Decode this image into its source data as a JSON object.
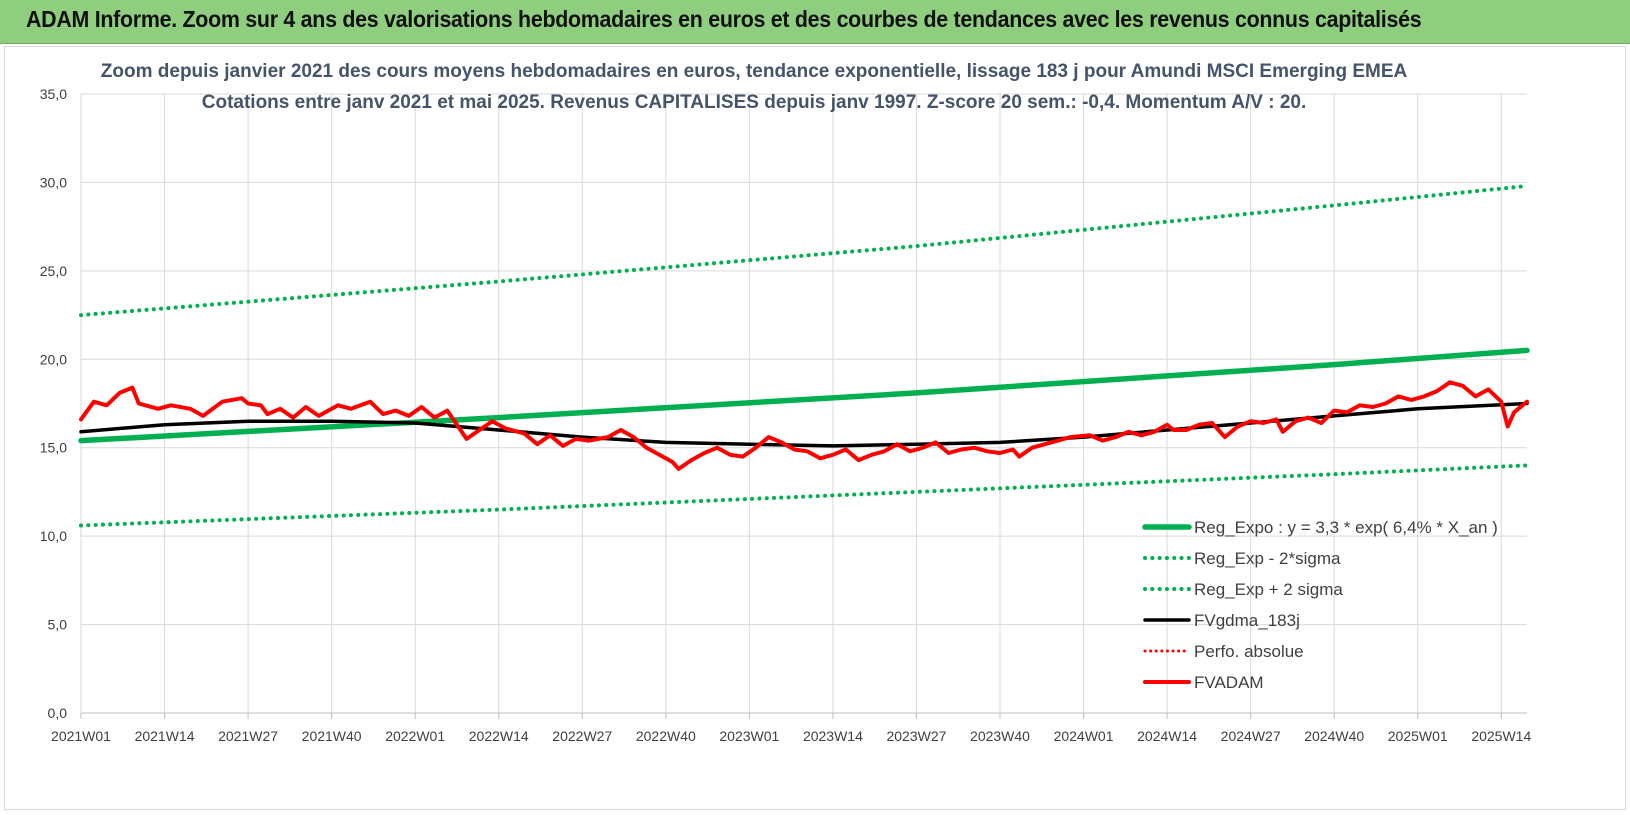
{
  "banner": {
    "title": "ADAM Informe. Zoom sur 4 ans des valorisations hebdomadaires en euros et des courbes de tendances avec les revenus connus capitalisés"
  },
  "colors": {
    "banner_bg": "#8fce7e",
    "trend_green": "#00b050",
    "dotted_green": "#00b050",
    "smooth_black": "#000000",
    "price_red": "#ff0000",
    "grid": "#d9d9d9",
    "title_text": "#44546a"
  },
  "chart_data": {
    "type": "line",
    "title_lines": [
      "Zoom depuis janvier 2021 des cours moyens hebdomadaires en euros, tendance exponentielle, lissage 183 j pour Amundi MSCI Emerging EMEA",
      "Cotations entre janv 2021 et mai 2025. Revenus CAPITALISES depuis janv 1997. Z-score 20 sem.: -0,4. Momentum A/V : 20."
    ],
    "xlabel": "",
    "ylabel": "",
    "ylim": [
      0,
      35
    ],
    "ytick_values": [
      0,
      5,
      10,
      15,
      20,
      25,
      30,
      35
    ],
    "ytick_labels": [
      "0,0",
      "5,0",
      "10,0",
      "15,0",
      "20,0",
      "25,0",
      "30,0",
      "35,0"
    ],
    "x_first_week": "2021W01",
    "x_last_week": "2025W18",
    "xtick_labels": [
      "2021W01",
      "2021W14",
      "2021W27",
      "2021W40",
      "2022W01",
      "2022W14",
      "2022W27",
      "2022W40",
      "2023W01",
      "2023W14",
      "2023W27",
      "2023W40",
      "2024W01",
      "2024W14",
      "2024W27",
      "2024W40",
      "2025W01",
      "2025W14"
    ],
    "grid": true,
    "legend_position": "bottom-right",
    "series": [
      {
        "name": "Reg_Expo : y = 3,3 * exp( 6,4% *  X_an )",
        "style": "solid-thick",
        "color": "#00b050",
        "points": [
          [
            "2021W01",
            15.4
          ],
          [
            "2022W14",
            16.7
          ],
          [
            "2023W27",
            18.1
          ],
          [
            "2024W40",
            19.7
          ],
          [
            "2025W18",
            20.5
          ]
        ]
      },
      {
        "name": "Reg_Exp - 2*sigma",
        "style": "dotted",
        "color": "#00b050",
        "points": [
          [
            "2021W01",
            10.6
          ],
          [
            "2022W14",
            11.5
          ],
          [
            "2023W27",
            12.5
          ],
          [
            "2024W40",
            13.5
          ],
          [
            "2025W18",
            14.0
          ]
        ]
      },
      {
        "name": "Reg_Exp + 2 sigma",
        "style": "dotted",
        "color": "#00b050",
        "points": [
          [
            "2021W01",
            22.5
          ],
          [
            "2022W14",
            24.4
          ],
          [
            "2023W27",
            26.4
          ],
          [
            "2024W40",
            28.7
          ],
          [
            "2025W18",
            29.8
          ]
        ]
      },
      {
        "name": "FVgdma_183j",
        "style": "solid",
        "color": "#000000",
        "points": [
          [
            "2021W01",
            15.9
          ],
          [
            "2021W14",
            16.3
          ],
          [
            "2021W27",
            16.5
          ],
          [
            "2021W40",
            16.5
          ],
          [
            "2022W01",
            16.4
          ],
          [
            "2022W14",
            16.0
          ],
          [
            "2022W27",
            15.6
          ],
          [
            "2022W40",
            15.3
          ],
          [
            "2023W01",
            15.2
          ],
          [
            "2023W14",
            15.1
          ],
          [
            "2023W27",
            15.2
          ],
          [
            "2023W40",
            15.3
          ],
          [
            "2024W01",
            15.6
          ],
          [
            "2024W14",
            16.0
          ],
          [
            "2024W27",
            16.4
          ],
          [
            "2024W40",
            16.8
          ],
          [
            "2025W01",
            17.2
          ],
          [
            "2025W18",
            17.5
          ]
        ]
      },
      {
        "name": "Perfo. absolue",
        "style": "dotted",
        "color": "#ff0000",
        "points": []
      },
      {
        "name": "FVADAM",
        "style": "solid-thick",
        "color": "#ff0000",
        "points": [
          [
            "2021W01",
            16.6
          ],
          [
            "2021W03",
            17.6
          ],
          [
            "2021W05",
            17.4
          ],
          [
            "2021W07",
            18.1
          ],
          [
            "2021W09",
            18.4
          ],
          [
            "2021W10",
            17.5
          ],
          [
            "2021W13",
            17.2
          ],
          [
            "2021W15",
            17.4
          ],
          [
            "2021W18",
            17.2
          ],
          [
            "2021W20",
            16.8
          ],
          [
            "2021W23",
            17.6
          ],
          [
            "2021W26",
            17.8
          ],
          [
            "2021W27",
            17.5
          ],
          [
            "2021W29",
            17.4
          ],
          [
            "2021W30",
            16.9
          ],
          [
            "2021W32",
            17.2
          ],
          [
            "2021W34",
            16.7
          ],
          [
            "2021W36",
            17.3
          ],
          [
            "2021W38",
            16.8
          ],
          [
            "2021W41",
            17.4
          ],
          [
            "2021W43",
            17.2
          ],
          [
            "2021W46",
            17.6
          ],
          [
            "2021W48",
            16.9
          ],
          [
            "2021W50",
            17.1
          ],
          [
            "2021W52",
            16.8
          ],
          [
            "2022W02",
            17.3
          ],
          [
            "2022W04",
            16.7
          ],
          [
            "2022W06",
            17.1
          ],
          [
            "2022W09",
            15.5
          ],
          [
            "2022W11",
            16.0
          ],
          [
            "2022W13",
            16.5
          ],
          [
            "2022W15",
            16.1
          ],
          [
            "2022W18",
            15.8
          ],
          [
            "2022W20",
            15.2
          ],
          [
            "2022W22",
            15.7
          ],
          [
            "2022W24",
            15.1
          ],
          [
            "2022W26",
            15.5
          ],
          [
            "2022W28",
            15.4
          ],
          [
            "2022W31",
            15.6
          ],
          [
            "2022W33",
            16.0
          ],
          [
            "2022W35",
            15.6
          ],
          [
            "2022W37",
            15.0
          ],
          [
            "2022W39",
            14.6
          ],
          [
            "2022W41",
            14.2
          ],
          [
            "2022W42",
            13.8
          ],
          [
            "2022W44",
            14.3
          ],
          [
            "2022W46",
            14.7
          ],
          [
            "2022W48",
            15.0
          ],
          [
            "2022W50",
            14.6
          ],
          [
            "2022W52",
            14.5
          ],
          [
            "2023W02",
            15.0
          ],
          [
            "2023W04",
            15.6
          ],
          [
            "2023W06",
            15.3
          ],
          [
            "2023W08",
            14.9
          ],
          [
            "2023W10",
            14.8
          ],
          [
            "2023W12",
            14.4
          ],
          [
            "2023W14",
            14.6
          ],
          [
            "2023W16",
            14.9
          ],
          [
            "2023W18",
            14.3
          ],
          [
            "2023W20",
            14.6
          ],
          [
            "2023W22",
            14.8
          ],
          [
            "2023W24",
            15.2
          ],
          [
            "2023W26",
            14.8
          ],
          [
            "2023W28",
            15.0
          ],
          [
            "2023W30",
            15.3
          ],
          [
            "2023W32",
            14.7
          ],
          [
            "2023W34",
            14.9
          ],
          [
            "2023W36",
            15.0
          ],
          [
            "2023W38",
            14.8
          ],
          [
            "2023W40",
            14.7
          ],
          [
            "2023W42",
            14.9
          ],
          [
            "2023W43",
            14.5
          ],
          [
            "2023W45",
            15.0
          ],
          [
            "2023W47",
            15.2
          ],
          [
            "2023W49",
            15.4
          ],
          [
            "2023W51",
            15.6
          ],
          [
            "2024W02",
            15.7
          ],
          [
            "2024W04",
            15.4
          ],
          [
            "2024W06",
            15.6
          ],
          [
            "2024W08",
            15.9
          ],
          [
            "2024W10",
            15.7
          ],
          [
            "2024W12",
            15.9
          ],
          [
            "2024W14",
            16.3
          ],
          [
            "2024W15",
            16.0
          ],
          [
            "2024W17",
            16.0
          ],
          [
            "2024W19",
            16.3
          ],
          [
            "2024W21",
            16.4
          ],
          [
            "2024W22",
            16.0
          ],
          [
            "2024W23",
            15.6
          ],
          [
            "2024W25",
            16.2
          ],
          [
            "2024W27",
            16.5
          ],
          [
            "2024W29",
            16.4
          ],
          [
            "2024W31",
            16.6
          ],
          [
            "2024W32",
            15.9
          ],
          [
            "2024W34",
            16.5
          ],
          [
            "2024W36",
            16.7
          ],
          [
            "2024W38",
            16.4
          ],
          [
            "2024W40",
            17.1
          ],
          [
            "2024W42",
            17.0
          ],
          [
            "2024W44",
            17.4
          ],
          [
            "2024W46",
            17.3
          ],
          [
            "2024W48",
            17.5
          ],
          [
            "2024W50",
            17.9
          ],
          [
            "2024W52",
            17.7
          ],
          [
            "2025W02",
            17.9
          ],
          [
            "2025W04",
            18.2
          ],
          [
            "2025W06",
            18.7
          ],
          [
            "2025W08",
            18.5
          ],
          [
            "2025W10",
            17.9
          ],
          [
            "2025W12",
            18.3
          ],
          [
            "2025W14",
            17.6
          ],
          [
            "2025W15",
            16.2
          ],
          [
            "2025W16",
            17.0
          ],
          [
            "2025W18",
            17.6
          ]
        ]
      }
    ]
  }
}
